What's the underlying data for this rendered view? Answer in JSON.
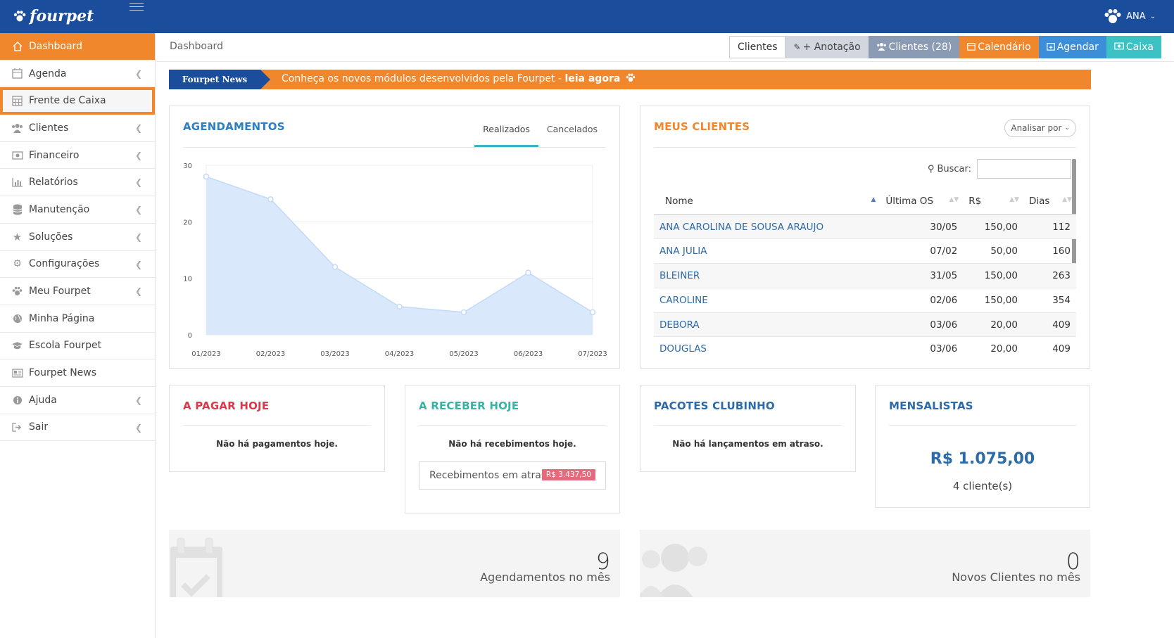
{
  "app": {
    "logo": "fourpet",
    "user": "ANA"
  },
  "sidebar": {
    "items": [
      {
        "label": "Dashboard",
        "icon": "home-icon"
      },
      {
        "label": "Agenda",
        "icon": "calendar-icon"
      },
      {
        "label": "Frente de Caixa",
        "icon": "calculator-icon"
      },
      {
        "label": "Clientes",
        "icon": "users-icon"
      },
      {
        "label": "Financeiro",
        "icon": "money-icon"
      },
      {
        "label": "Relatórios",
        "icon": "bar-chart-icon"
      },
      {
        "label": "Manutenção",
        "icon": "database-icon"
      },
      {
        "label": "Soluções",
        "icon": "star-icon"
      },
      {
        "label": "Configurações",
        "icon": "gears-icon"
      },
      {
        "label": "Meu Fourpet",
        "icon": "paw-icon"
      },
      {
        "label": "Minha Página",
        "icon": "globe-icon"
      },
      {
        "label": "Escola Fourpet",
        "icon": "graduation-cap-icon"
      },
      {
        "label": "Fourpet News",
        "icon": "newspaper-icon"
      },
      {
        "label": "Ajuda",
        "icon": "info-icon"
      },
      {
        "label": "Sair",
        "icon": "sign-out-icon"
      }
    ]
  },
  "breadcrumb": "Dashboard",
  "toolbar": {
    "clientes": "Clientes",
    "anotacao": "+ Anotação",
    "clientes_count": "Clientes (28)",
    "calendario": "Calendário",
    "agendar": "Agendar",
    "caixa": "Caixa",
    "colors": {
      "anotacao": "#d2d6de",
      "clientes_count": "#8a9bb3",
      "calendario": "#f0872d",
      "agendar": "#3d8ed8",
      "caixa": "#3cc1c4"
    }
  },
  "news": {
    "tag": "Fourpet News",
    "text": "Conheça os novos módulos desenvolvidos pela Fourpet - ",
    "link": "leia agora"
  },
  "agendamentos": {
    "title": "AGENDAMENTOS",
    "tabs": [
      "Realizados",
      "Cancelados"
    ]
  },
  "chart_data": {
    "type": "area",
    "x": [
      "01/2023",
      "02/2023",
      "03/2023",
      "04/2023",
      "05/2023",
      "06/2023",
      "07/2023"
    ],
    "values": [
      28,
      24,
      12,
      5,
      4,
      11,
      4
    ],
    "yticks": [
      0,
      10,
      20,
      30
    ],
    "ylim": [
      0,
      30
    ],
    "grid": true,
    "fill_color": "#d9e8fb",
    "line_color": "#c4daf7"
  },
  "meus_clientes": {
    "title": "MEUS CLIENTES",
    "analisar": "Analisar por",
    "buscar": "Buscar:",
    "columns": [
      "Nome",
      "Última OS",
      "R$",
      "Dias"
    ],
    "rows": [
      [
        "ANA CAROLINA DE SOUSA ARAUJO",
        "30/05",
        "150,00",
        "112"
      ],
      [
        "ANA JULIA",
        "07/02",
        "50,00",
        "160"
      ],
      [
        "BLEINER",
        "31/05",
        "150,00",
        "263"
      ],
      [
        "CAROLINE",
        "02/06",
        "150,00",
        "354"
      ],
      [
        "DEBORA",
        "03/06",
        "20,00",
        "409"
      ],
      [
        "DOUGLAS",
        "03/06",
        "20,00",
        "409"
      ]
    ]
  },
  "a_pagar": {
    "title": "A PAGAR HOJE",
    "msg": "Não há pagamentos hoje.",
    "color": "#d9394a"
  },
  "a_receber": {
    "title": "A RECEBER HOJE",
    "msg": "Não há recebimentos hoje.",
    "atraso_label": "Recebimentos em atraso",
    "atraso_value": "R$ 3.437,50",
    "color": "#37b3a4"
  },
  "pacotes": {
    "title": "PACOTES CLUBINHO",
    "msg": "Não há lançamentos em atraso.",
    "color": "#2d6aa8"
  },
  "mensalistas": {
    "title": "MENSALISTAS",
    "value": "R$ 1.075,00",
    "count": "4 cliente(s)",
    "color": "#2d6aa8"
  },
  "stats": [
    {
      "value": "9",
      "label": "Agendamentos no mês",
      "icon": "calendar-check-icon"
    },
    {
      "value": "0",
      "label": "Novos Clientes no mês",
      "icon": "users-icon"
    }
  ]
}
